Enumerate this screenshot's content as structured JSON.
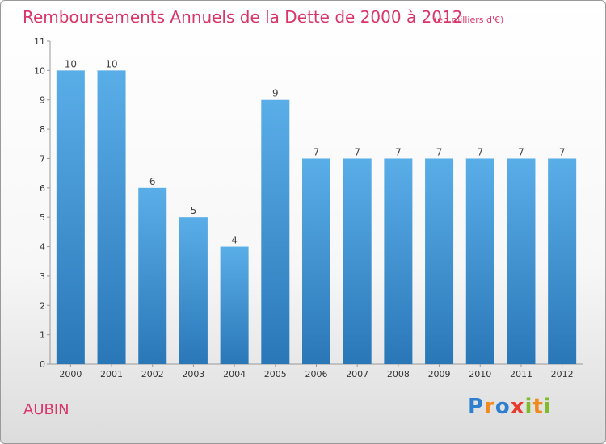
{
  "header": {
    "title": "Remboursements Annuels de la Dette de 2000 à 2012",
    "subtitle": "(en milliers d'€)"
  },
  "footer": {
    "commune": "AUBIN",
    "logo_letters": [
      "P",
      "r",
      "o",
      "x",
      "i",
      "t",
      "i"
    ],
    "logo_colors": [
      "#2e7fd0",
      "#f08a1c",
      "#2e7fd0",
      "#e8392e",
      "#7fba2a",
      "#f08a1c",
      "#7fba2a"
    ]
  },
  "chart_data": {
    "type": "bar",
    "categories": [
      "2000",
      "2001",
      "2002",
      "2003",
      "2004",
      "2005",
      "2006",
      "2007",
      "2008",
      "2009",
      "2010",
      "2011",
      "2012"
    ],
    "values": [
      10,
      10,
      6,
      5,
      4,
      9,
      7,
      7,
      7,
      7,
      7,
      7,
      7
    ],
    "y_ticks": [
      0,
      1,
      2,
      3,
      4,
      5,
      6,
      7,
      8,
      9,
      10,
      11
    ],
    "ylim": [
      0,
      11
    ],
    "grid": false,
    "bar_color_top": "#5aaee8",
    "bar_color_bottom": "#2a77b8"
  }
}
